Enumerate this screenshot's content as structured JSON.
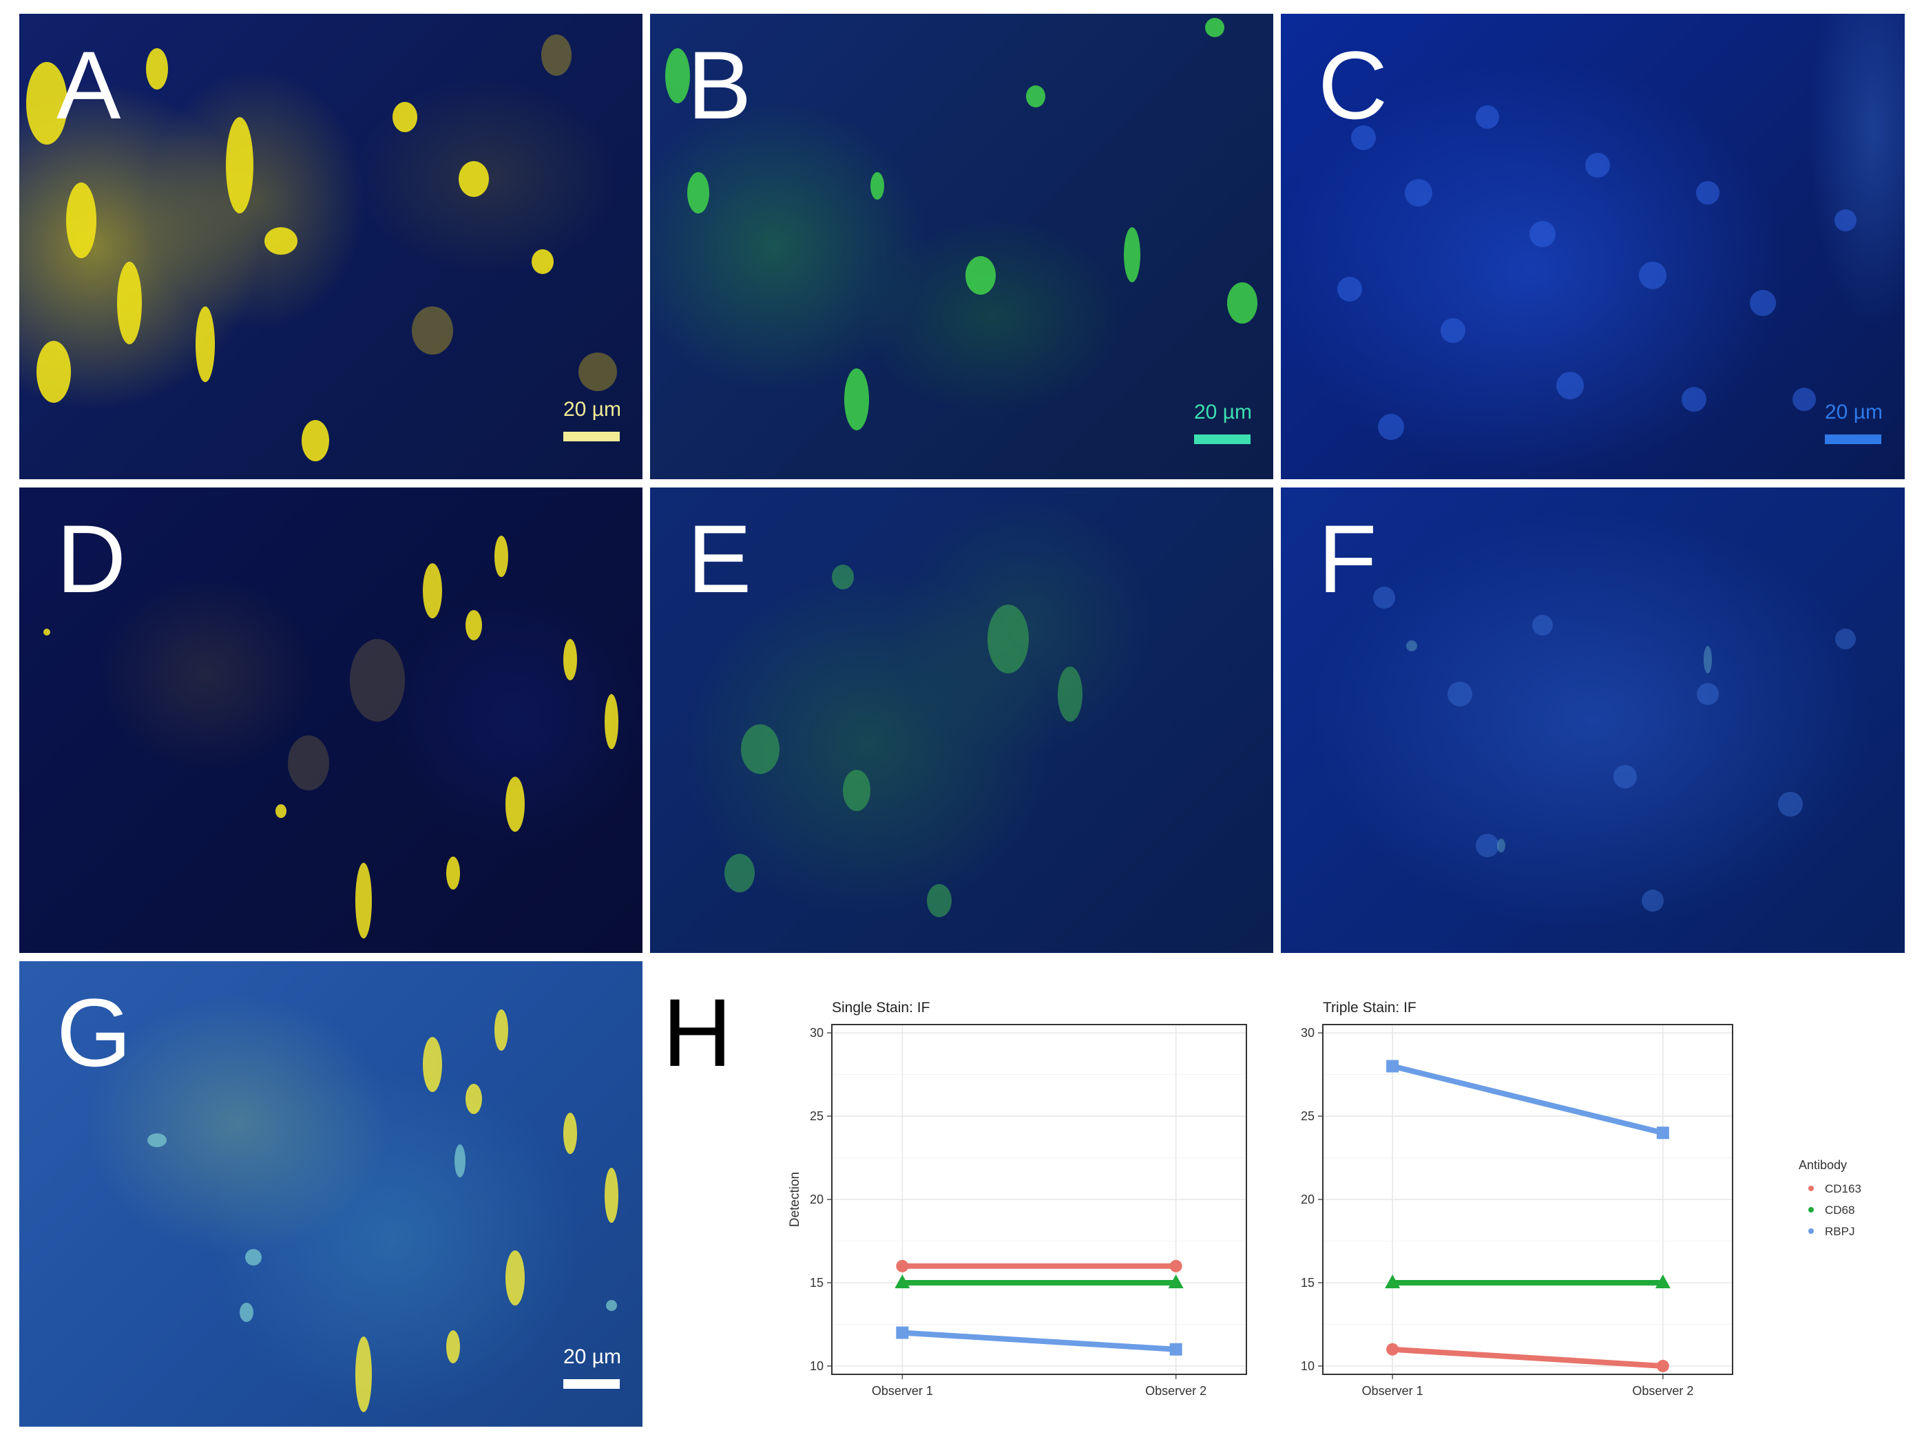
{
  "panels": {
    "a": {
      "letter": "A",
      "scale": "20 µm",
      "scale_color": "#f2ec95"
    },
    "b": {
      "letter": "B",
      "scale": "20 µm",
      "scale_color": "#3ce0b0"
    },
    "c": {
      "letter": "C",
      "scale": "20 µm",
      "scale_color": "#2f7ae8"
    },
    "d": {
      "letter": "D"
    },
    "e": {
      "letter": "E"
    },
    "f": {
      "letter": "F"
    },
    "g": {
      "letter": "G",
      "scale": "20 µm",
      "scale_color": "#ffffff"
    },
    "h": {
      "letter": "H"
    }
  },
  "chart_data": [
    {
      "type": "line",
      "title": "Single Stain: IF",
      "xlabel": "",
      "ylabel": "Detection",
      "categories": [
        "Observer 1",
        "Observer 2"
      ],
      "ylim": [
        9.5,
        30.5
      ],
      "yticks": [
        10,
        15,
        20,
        25,
        30
      ],
      "grid": true,
      "series": [
        {
          "name": "CD163",
          "values": [
            16,
            16
          ],
          "color": "#e8736a",
          "marker": "circle"
        },
        {
          "name": "CD68",
          "values": [
            15,
            15
          ],
          "color": "#1faa3a",
          "marker": "triangle"
        },
        {
          "name": "RBPJ",
          "values": [
            12,
            11
          ],
          "color": "#6a9de6",
          "marker": "square"
        }
      ]
    },
    {
      "type": "line",
      "title": "Triple Stain: IF",
      "xlabel": "",
      "ylabel": "",
      "categories": [
        "Observer 1",
        "Observer 2"
      ],
      "ylim": [
        9.5,
        30.5
      ],
      "yticks": [
        10,
        15,
        20,
        25,
        30
      ],
      "grid": true,
      "series": [
        {
          "name": "CD163",
          "values": [
            11,
            10
          ],
          "color": "#e8736a",
          "marker": "circle"
        },
        {
          "name": "CD68",
          "values": [
            15,
            15
          ],
          "color": "#1faa3a",
          "marker": "triangle"
        },
        {
          "name": "RBPJ",
          "values": [
            28,
            24
          ],
          "color": "#6a9de6",
          "marker": "square"
        }
      ]
    }
  ],
  "legend": {
    "title": "Antibody",
    "placement": "right",
    "items": [
      {
        "label": "CD163",
        "color": "#e8736a"
      },
      {
        "label": "CD68",
        "color": "#1faa3a"
      },
      {
        "label": "RBPJ",
        "color": "#6a9de6"
      }
    ]
  }
}
